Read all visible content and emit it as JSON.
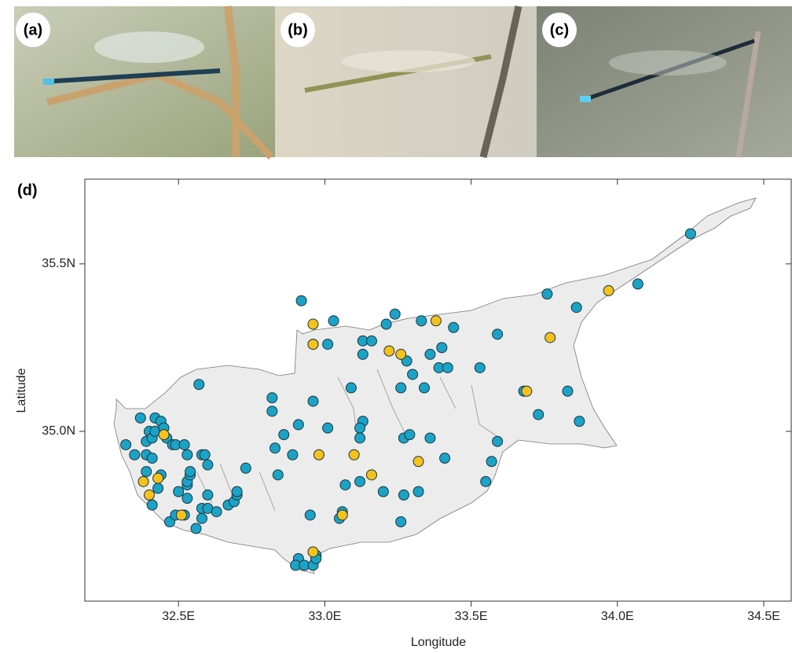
{
  "panel_labels": [
    "(a)",
    "(b)",
    "(c)",
    "(d)"
  ],
  "chart_data": {
    "type": "scatter",
    "x_label": "Longitude",
    "y_label": "Latitude",
    "xlim": [
      32.18,
      34.594
    ],
    "ylim": [
      34.493,
      35.753
    ],
    "xticks": [
      {
        "value": 32.5,
        "label": "32.5E"
      },
      {
        "value": 33.0,
        "label": "33.0E"
      },
      {
        "value": 33.5,
        "label": "33.5E"
      },
      {
        "value": 34.0,
        "label": "34.0E"
      },
      {
        "value": 34.5,
        "label": "34.5E"
      }
    ],
    "yticks": [
      {
        "value": 35.0,
        "label": "35.0N"
      },
      {
        "value": 35.5,
        "label": "35.5N"
      }
    ],
    "series": [
      {
        "color": "#1ba3c6",
        "x": [
          34.25,
          34.07,
          33.86,
          33.76,
          33.83,
          33.87,
          33.73,
          33.59,
          33.53,
          33.68,
          32.92,
          33.03,
          33.21,
          33.24,
          33.33,
          33.44,
          33.13,
          33.16,
          33.13,
          33.01,
          32.96,
          33.36,
          33.4,
          33.39,
          33.42,
          33.28,
          33.3,
          33.26,
          33.34,
          32.82,
          32.82,
          32.96,
          33.01,
          32.91,
          32.86,
          32.83,
          32.89,
          33.09,
          33.13,
          33.12,
          33.12,
          33.27,
          33.29,
          33.36,
          33.41,
          33.57,
          33.59,
          33.55,
          33.2,
          33.27,
          33.32,
          33.12,
          33.07,
          33.06,
          33.05,
          32.95,
          32.84,
          33.26,
          32.97,
          32.91,
          32.9,
          32.93,
          32.96,
          32.97,
          32.57,
          32.32,
          32.35,
          32.37,
          32.39,
          32.4,
          32.39,
          32.41,
          32.42,
          32.42,
          32.44,
          32.45,
          32.46,
          32.48,
          32.49,
          32.52,
          32.53,
          32.58,
          32.59,
          32.6,
          32.41,
          32.39,
          32.44,
          32.43,
          32.41,
          32.5,
          32.53,
          32.53,
          32.54,
          32.54,
          32.53,
          32.58,
          32.6,
          32.6,
          32.63,
          32.67,
          32.69,
          32.7,
          32.7,
          32.73,
          32.56,
          32.58,
          32.47,
          32.49,
          32.52
        ],
        "values": [
          35.59,
          35.44,
          35.37,
          35.41,
          35.12,
          35.03,
          35.05,
          35.29,
          35.19,
          35.12,
          35.39,
          35.33,
          35.32,
          35.35,
          35.33,
          35.31,
          35.27,
          35.27,
          35.23,
          35.26,
          35.26,
          35.23,
          35.25,
          35.19,
          35.19,
          35.21,
          35.17,
          35.13,
          35.13,
          35.1,
          35.06,
          35.09,
          35.01,
          35.02,
          34.99,
          34.95,
          34.93,
          35.13,
          35.03,
          35.01,
          34.98,
          34.98,
          34.99,
          34.98,
          34.92,
          34.91,
          34.97,
          34.85,
          34.82,
          34.81,
          34.82,
          34.85,
          34.84,
          34.76,
          34.74,
          34.75,
          34.87,
          34.73,
          34.63,
          34.62,
          34.6,
          34.6,
          34.6,
          34.62,
          35.14,
          34.96,
          34.93,
          35.04,
          34.97,
          35.0,
          34.93,
          34.98,
          35.0,
          35.04,
          35.03,
          35.01,
          34.98,
          34.96,
          34.96,
          34.96,
          34.93,
          34.93,
          34.93,
          34.9,
          34.92,
          34.88,
          34.87,
          34.83,
          34.78,
          34.82,
          34.84,
          34.85,
          34.87,
          34.88,
          34.8,
          34.77,
          34.81,
          34.77,
          34.76,
          34.78,
          34.79,
          34.81,
          34.82,
          34.89,
          34.71,
          34.74,
          34.73,
          34.75,
          34.75
        ]
      },
      {
        "color": "#f4c21b",
        "x": [
          32.96,
          32.96,
          33.22,
          33.26,
          33.38,
          33.32,
          33.1,
          32.98,
          33.16,
          33.06,
          32.96,
          32.45,
          32.43,
          32.38,
          32.4,
          32.51,
          33.69,
          33.77,
          33.97
        ],
        "values": [
          35.32,
          35.26,
          35.24,
          35.23,
          35.33,
          34.91,
          34.93,
          34.93,
          34.87,
          34.75,
          34.64,
          34.99,
          34.86,
          34.85,
          34.81,
          34.75,
          35.12,
          35.28,
          35.42
        ]
      }
    ]
  }
}
